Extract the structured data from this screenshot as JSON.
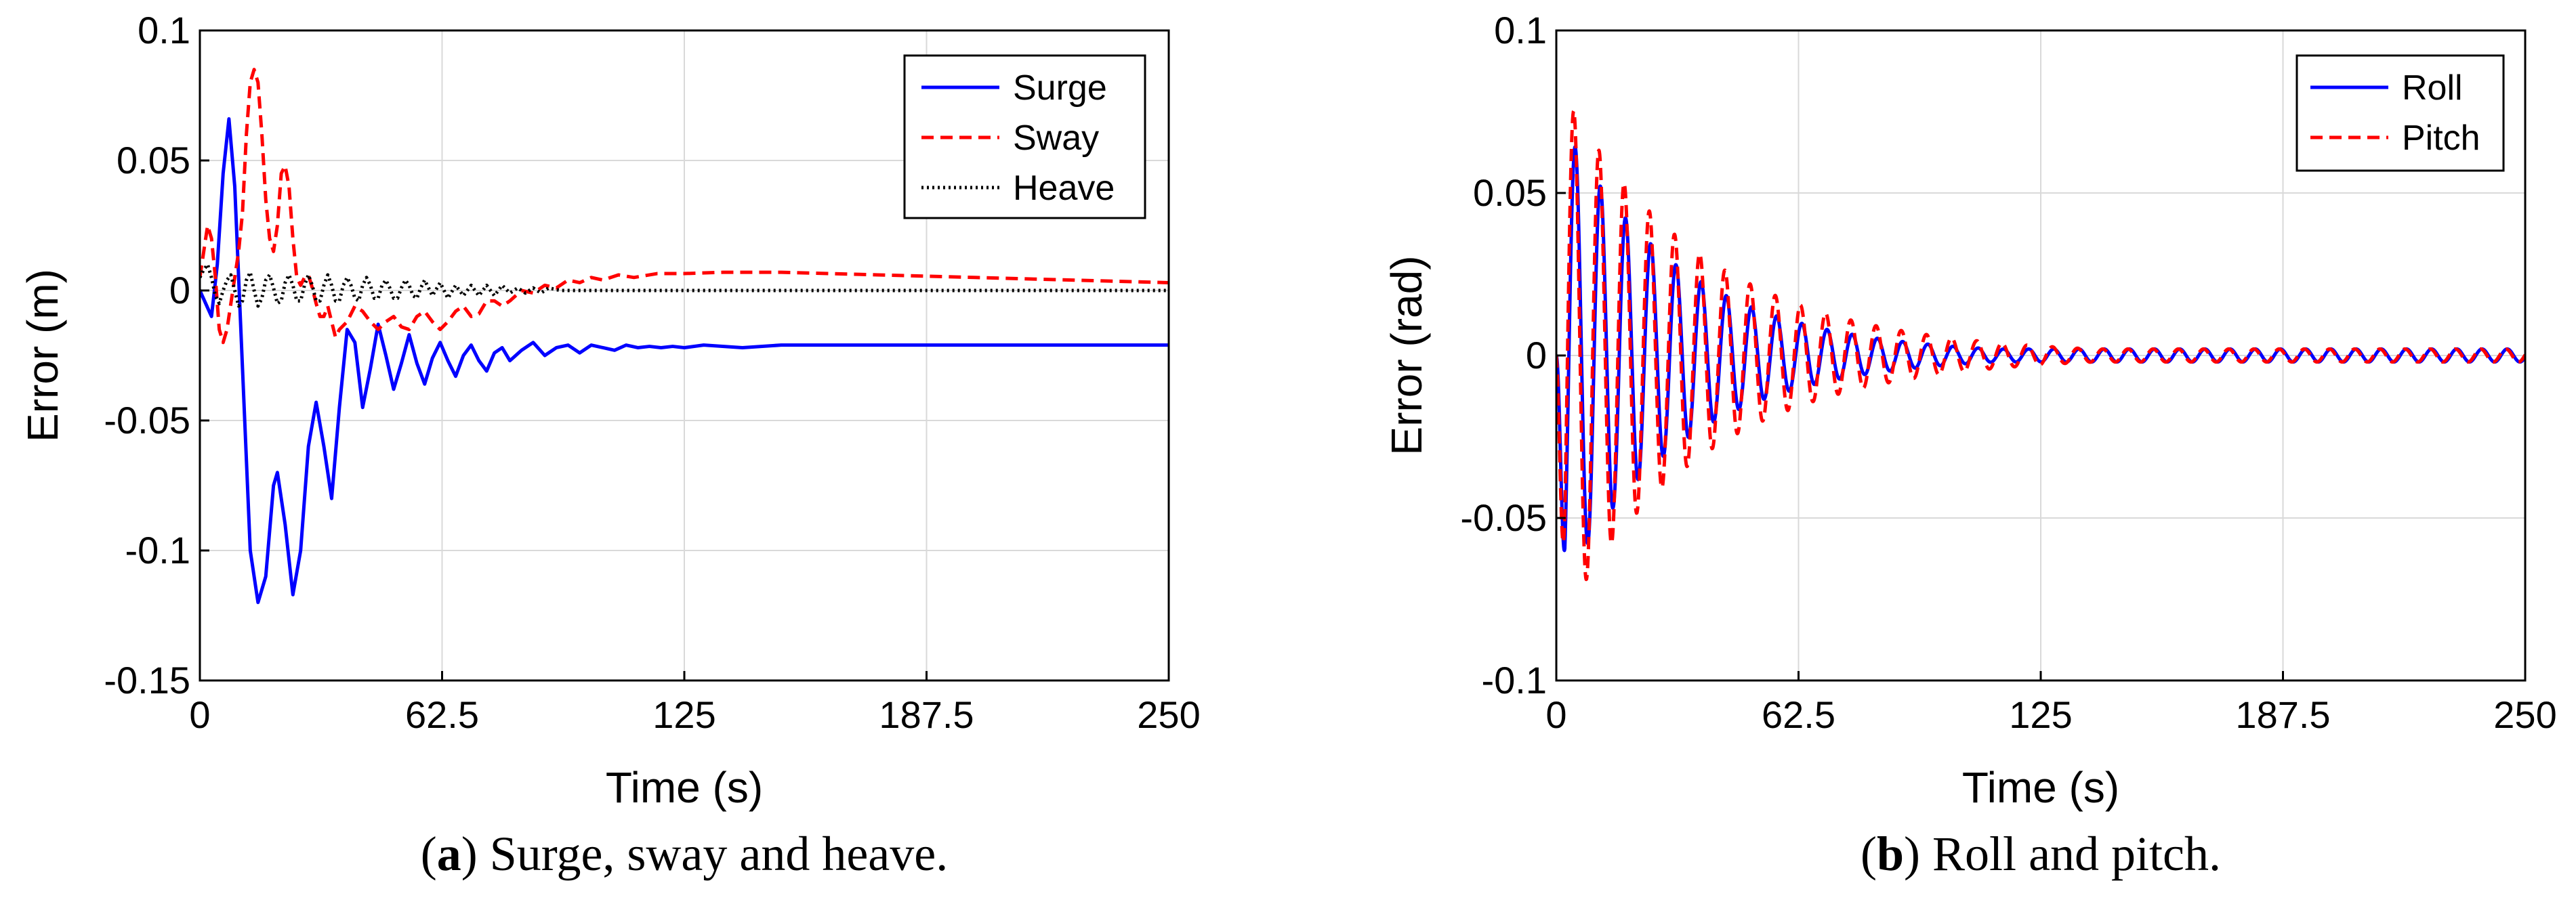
{
  "chart_data": [
    {
      "type": "line",
      "panel_label": "a",
      "caption": "Surge, sway and heave.",
      "xlabel": "Time (s)",
      "ylabel": "Error (m)",
      "xlim": [
        0,
        250
      ],
      "ylim": [
        -0.15,
        0.1
      ],
      "xticks": [
        0,
        62.5,
        125,
        187.5,
        250
      ],
      "xtick_labels": [
        "0",
        "62.5",
        "125",
        "187.5",
        "250"
      ],
      "yticks": [
        -0.15,
        -0.1,
        -0.05,
        0,
        0.05,
        0.1
      ],
      "ytick_labels": [
        "-0.15",
        "-0.1",
        "-0.05",
        "0",
        "0.05",
        "0.1"
      ],
      "grid": true,
      "legend_position": "top-right",
      "series": [
        {
          "name": "Surge",
          "color": "#0000ff",
          "style": "solid",
          "x": [
            0,
            1.5,
            3,
            4.5,
            6,
            7.5,
            9,
            11,
            13,
            15,
            17,
            19,
            20,
            22,
            24,
            26,
            28,
            30,
            32,
            34,
            36,
            38,
            40,
            42,
            44,
            46,
            48,
            50,
            52,
            54,
            56,
            58,
            60,
            62,
            64,
            66,
            68,
            70,
            72,
            74,
            76,
            78,
            80,
            83,
            86,
            89,
            92,
            95,
            98,
            101,
            104,
            107,
            110,
            113,
            116,
            119,
            122,
            125,
            130,
            140,
            150,
            160,
            170,
            180,
            190,
            200,
            220,
            250
          ],
          "y": [
            0,
            -0.005,
            -0.01,
            0.01,
            0.045,
            0.066,
            0.04,
            -0.03,
            -0.1,
            -0.12,
            -0.11,
            -0.075,
            -0.07,
            -0.09,
            -0.117,
            -0.1,
            -0.06,
            -0.043,
            -0.06,
            -0.08,
            -0.045,
            -0.015,
            -0.02,
            -0.045,
            -0.03,
            -0.013,
            -0.025,
            -0.038,
            -0.028,
            -0.017,
            -0.028,
            -0.036,
            -0.026,
            -0.02,
            -0.027,
            -0.033,
            -0.025,
            -0.021,
            -0.027,
            -0.031,
            -0.024,
            -0.022,
            -0.027,
            -0.023,
            -0.02,
            -0.025,
            -0.022,
            -0.021,
            -0.024,
            -0.021,
            -0.022,
            -0.023,
            -0.021,
            -0.022,
            -0.0215,
            -0.022,
            -0.0215,
            -0.022,
            -0.021,
            -0.022,
            -0.021,
            -0.021,
            -0.021,
            -0.021,
            -0.021,
            -0.021,
            -0.021,
            -0.021
          ]
        },
        {
          "name": "Sway",
          "color": "#ff0000",
          "style": "dashed",
          "x": [
            0,
            1,
            2,
            3,
            4,
            5,
            6,
            7,
            8,
            9,
            10,
            11,
            12,
            13,
            14,
            15,
            16,
            17,
            18,
            19,
            20,
            21,
            22,
            23,
            24,
            25,
            26,
            27,
            28,
            29,
            30,
            31,
            32,
            33,
            34,
            35,
            36,
            38,
            40,
            42,
            44,
            46,
            48,
            50,
            52,
            54,
            56,
            58,
            60,
            62,
            64,
            66,
            68,
            70,
            72,
            74,
            76,
            78,
            80,
            83,
            86,
            89,
            92,
            95,
            98,
            101,
            104,
            108,
            112,
            118,
            125,
            135,
            150,
            175,
            200,
            225,
            250
          ],
          "y": [
            0.005,
            0.015,
            0.025,
            0.02,
            0.005,
            -0.015,
            -0.02,
            -0.015,
            -0.005,
            0.005,
            0.015,
            0.03,
            0.06,
            0.08,
            0.085,
            0.08,
            0.06,
            0.035,
            0.02,
            0.015,
            0.025,
            0.045,
            0.048,
            0.04,
            0.02,
            0.005,
            0.002,
            0.005,
            0.006,
            0.001,
            -0.005,
            -0.01,
            -0.01,
            -0.006,
            -0.012,
            -0.018,
            -0.015,
            -0.012,
            -0.006,
            -0.008,
            -0.012,
            -0.015,
            -0.012,
            -0.01,
            -0.014,
            -0.015,
            -0.01,
            -0.008,
            -0.012,
            -0.015,
            -0.012,
            -0.008,
            -0.006,
            -0.01,
            -0.009,
            -0.004,
            -0.004,
            -0.006,
            -0.004,
            0.0,
            -0.001,
            0.002,
            0.001,
            0.004,
            0.003,
            0.005,
            0.004,
            0.006,
            0.005,
            0.0065,
            0.0065,
            0.007,
            0.007,
            0.006,
            0.005,
            0.004,
            0.003
          ]
        },
        {
          "name": "Heave",
          "color": "#000000",
          "style": "dotted",
          "x": [
            0,
            1,
            2,
            3,
            4,
            5,
            6,
            7,
            8,
            9,
            10,
            11,
            12,
            13,
            14,
            15,
            16,
            17,
            18,
            19,
            20,
            21,
            22,
            23,
            24,
            25,
            26,
            27,
            28,
            29,
            30,
            31,
            32,
            33,
            34,
            35,
            36,
            37,
            38,
            39,
            40,
            41,
            42,
            43,
            44,
            45,
            46,
            47,
            48,
            49,
            50,
            51,
            52,
            53,
            54,
            55,
            56,
            57,
            58,
            59,
            60,
            62,
            64,
            66,
            68,
            70,
            72,
            74,
            76,
            78,
            80,
            82,
            84,
            86,
            88,
            90,
            93,
            96,
            99,
            102,
            105,
            110,
            120,
            140,
            160,
            190,
            220,
            250
          ],
          "y": [
            0.005,
            0.008,
            0.01,
            0.005,
            -0.002,
            -0.005,
            0.0,
            0.004,
            0.006,
            0.0,
            -0.006,
            -0.004,
            0.004,
            0.007,
            0.0,
            -0.006,
            -0.003,
            0.004,
            0.006,
            0.001,
            -0.005,
            -0.004,
            0.003,
            0.006,
            0.002,
            -0.004,
            -0.004,
            0.002,
            0.006,
            0.002,
            -0.004,
            -0.004,
            0.002,
            0.006,
            0.002,
            -0.004,
            -0.004,
            0.002,
            0.005,
            0.002,
            -0.003,
            -0.004,
            0.002,
            0.005,
            0.002,
            -0.003,
            -0.003,
            0.002,
            0.004,
            0.001,
            -0.003,
            -0.003,
            0.001,
            0.004,
            0.002,
            -0.002,
            -0.003,
            0.001,
            0.004,
            0.001,
            -0.002,
            0.003,
            -0.003,
            0.002,
            -0.002,
            0.002,
            -0.002,
            0.002,
            -0.002,
            0.002,
            -0.001,
            0.001,
            -0.001,
            0.001,
            -0.001,
            0.001,
            0.0,
            0.0,
            0.0,
            0.0,
            0.0,
            0.0,
            0.0,
            0.0,
            0.0,
            0.0,
            0.0,
            0.0
          ]
        }
      ]
    },
    {
      "type": "line",
      "panel_label": "b",
      "caption": "Roll and pitch.",
      "xlabel": "Time (s)",
      "ylabel": "Error (rad)",
      "xlim": [
        0,
        250
      ],
      "ylim": [
        -0.1,
        0.1
      ],
      "xticks": [
        0,
        62.5,
        125,
        187.5,
        250
      ],
      "xtick_labels": [
        "0",
        "62.5",
        "125",
        "187.5",
        "250"
      ],
      "yticks": [
        -0.1,
        -0.05,
        0,
        0.05,
        0.1
      ],
      "ytick_labels": [
        "-0.1",
        "-0.05",
        "0",
        "0.05",
        "0.1"
      ],
      "grid": true,
      "legend_position": "top-right",
      "series": [
        {
          "name": "Roll",
          "color": "#0000ff",
          "style": "solid",
          "generator": {
            "kind": "damped_sine",
            "amplitude": 0.075,
            "period": 6.5,
            "phase_deg": 180,
            "decay_per_s": 0.032,
            "floor_amplitude": 0.002,
            "start": 0,
            "x_max": 250
          }
        },
        {
          "name": "Pitch",
          "color": "#ff0000",
          "style": "dashed",
          "generator": {
            "kind": "damped_sine",
            "amplitude": 0.085,
            "period": 6.5,
            "phase_deg": 200,
            "decay_per_s": 0.027,
            "floor_amplitude": 0.002,
            "start": 0,
            "x_max": 250
          }
        }
      ]
    }
  ]
}
